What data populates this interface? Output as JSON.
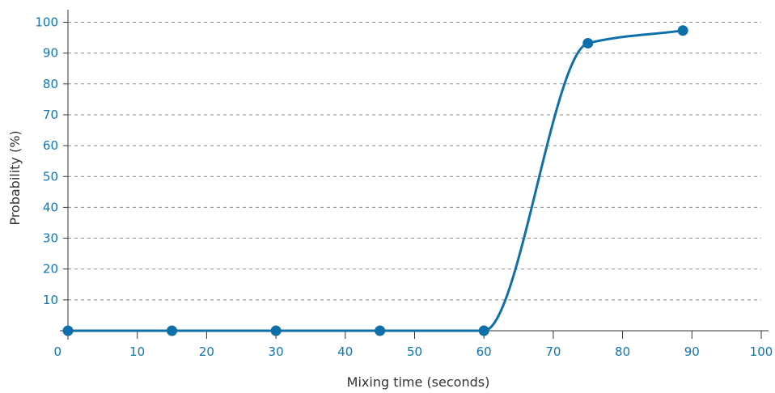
{
  "chart_data": {
    "type": "line",
    "title": "",
    "xlabel": "Mixing time (seconds)",
    "ylabel": "Probability (%)",
    "xlim": [
      0,
      100
    ],
    "ylim": [
      0,
      100
    ],
    "x_ticks": [
      0,
      10,
      20,
      30,
      40,
      50,
      60,
      70,
      80,
      90,
      100
    ],
    "y_ticks": [
      10,
      20,
      30,
      40,
      50,
      60,
      70,
      80,
      90,
      100
    ],
    "grid": "horizontal dashed",
    "smooth": true,
    "series": [
      {
        "x": [
          0,
          15,
          30,
          45,
          60,
          75,
          88.7
        ],
        "y": [
          0,
          0,
          0,
          0,
          0,
          93.2,
          97.3
        ]
      }
    ],
    "colors": {
      "series": "#0f6fa8",
      "tick_label": "#0f77b2",
      "axis": "#333333",
      "grid": "#888888"
    }
  }
}
